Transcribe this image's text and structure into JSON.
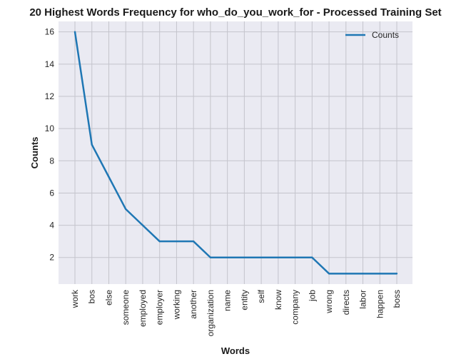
{
  "chart_data": {
    "type": "line",
    "title": "20 Highest Words Frequency for who_do_you_work_for - Processed Training Set",
    "xlabel": "Words",
    "ylabel": "Counts",
    "categories": [
      "work",
      "bos",
      "else",
      "someone",
      "employed",
      "employer",
      "working",
      "another",
      "organization",
      "name",
      "entity",
      "self",
      "know",
      "company",
      "job",
      "wrong",
      "directs",
      "labor",
      "happen",
      "boss"
    ],
    "series": [
      {
        "name": "Counts",
        "values": [
          16,
          9,
          7,
          5,
          4,
          3,
          3,
          3,
          2,
          2,
          2,
          2,
          2,
          2,
          2,
          1,
          1,
          1,
          1,
          1
        ]
      }
    ],
    "yticks": [
      2,
      4,
      6,
      8,
      10,
      12,
      14,
      16
    ],
    "ylim": [
      0.35,
      16.65
    ],
    "grid": true,
    "legend_position": "top-right",
    "colors": {
      "line": "#1f77b4",
      "plot_bg": "#eaeaf2",
      "grid": "#c4c4cc"
    }
  }
}
